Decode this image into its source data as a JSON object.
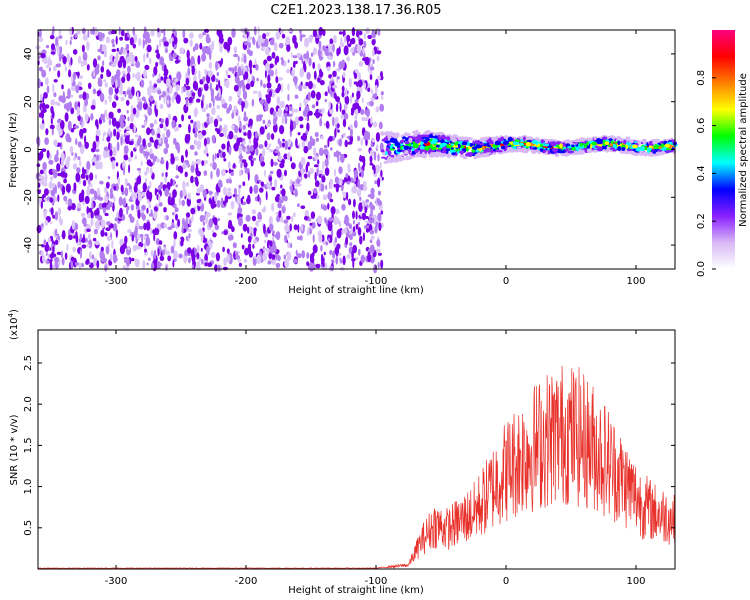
{
  "title": "C2E1.2023.138.17.36.R05",
  "colors": {
    "snr_line": "#e8302a",
    "spectrogram_noise": "#7a00e6",
    "colormap": [
      "#ffffff",
      "#d8b8f5",
      "#8a20ff",
      "#0000ff",
      "#00ffff",
      "#00ff00",
      "#ffff00",
      "#ff8000",
      "#ff0000",
      "#ff0080"
    ]
  },
  "chart_data": [
    {
      "type": "heatmap",
      "name": "spectrogram",
      "xlabel": "Height of straight line (km)",
      "ylabel": "Frequency (Hz)",
      "xlim": [
        -360,
        130
      ],
      "ylim": [
        -50,
        50
      ],
      "xticks": [
        -300,
        -200,
        -100,
        0,
        100
      ],
      "yticks": [
        -40,
        -20,
        0,
        20,
        40
      ],
      "xtick_labels": [
        "-300",
        "-200",
        "-100",
        "0",
        "100"
      ],
      "ytick_labels": [
        "-40",
        "-20",
        "0",
        "20",
        "40"
      ],
      "noise_region_x": [
        -360,
        -95
      ],
      "signal_region_x": [
        -95,
        130
      ],
      "signal_center_freq": 1.5,
      "signal_peak_amplitude": 0.95,
      "colorbar": {
        "label": "Normalized spectral amplitude",
        "range": [
          0.0,
          1.0
        ],
        "ticks": [
          0.0,
          0.2,
          0.4,
          0.6,
          0.8
        ],
        "tick_labels": [
          "0.0",
          "0.2",
          "0.4",
          "0.6",
          "0.8"
        ]
      }
    },
    {
      "type": "line",
      "name": "snr",
      "xlabel": "Height of straight line (km)",
      "ylabel": "SNR (10 * v/v)",
      "yscale_label": "(x10",
      "yscale_exp": "4",
      "yscale_close": ")",
      "xlim": [
        -360,
        130
      ],
      "ylim": [
        0,
        2.9
      ],
      "xticks": [
        -300,
        -200,
        -100,
        0,
        100
      ],
      "yticks": [
        0.5,
        1.0,
        1.5,
        2.0,
        2.5
      ],
      "xtick_labels": [
        "-300",
        "-200",
        "-100",
        "0",
        "100"
      ],
      "ytick_labels": [
        "0.5",
        "1.0",
        "1.5",
        "2.0",
        "2.5"
      ],
      "envelope": {
        "x": [
          -360,
          -100,
          -75,
          -65,
          -55,
          -45,
          -35,
          -25,
          -15,
          -5,
          5,
          15,
          25,
          35,
          45,
          55,
          65,
          75,
          85,
          95,
          105,
          115,
          125,
          130
        ],
        "y": [
          0.01,
          0.01,
          0.05,
          0.35,
          0.55,
          0.5,
          0.6,
          0.7,
          0.9,
          1.15,
          1.3,
          1.45,
          1.55,
          1.65,
          1.7,
          1.65,
          1.55,
          1.4,
          1.2,
          1.0,
          0.8,
          0.7,
          0.65,
          0.6
        ]
      }
    }
  ]
}
